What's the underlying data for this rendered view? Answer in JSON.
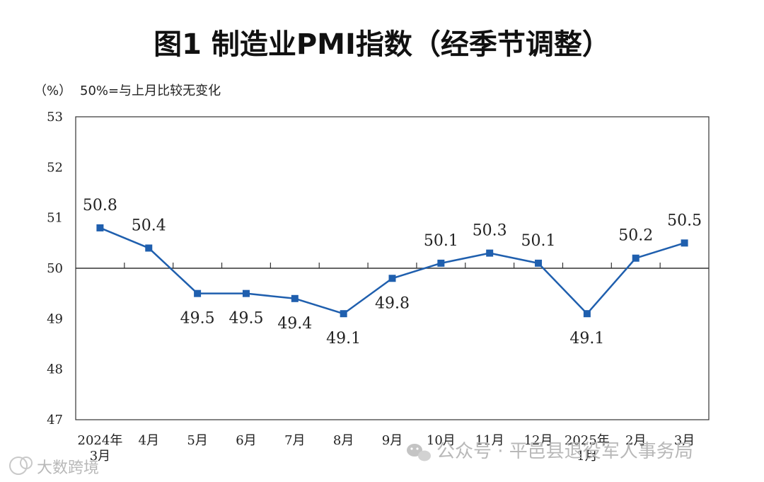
{
  "chart_data": {
    "type": "line",
    "title": "图1  制造业PMI指数（经季节调整）",
    "unit_label": "（%）",
    "note": "50%=与上月比较无变化",
    "categories": [
      [
        "2024年",
        "3月"
      ],
      [
        "4月"
      ],
      [
        "5月"
      ],
      [
        "6月"
      ],
      [
        "7月"
      ],
      [
        "8月"
      ],
      [
        "9月"
      ],
      [
        "10月"
      ],
      [
        "11月"
      ],
      [
        "12月"
      ],
      [
        "2025年",
        "1月"
      ],
      [
        "2月"
      ],
      [
        "3月"
      ]
    ],
    "series": [
      {
        "values": [
          50.8,
          50.4,
          49.5,
          49.5,
          49.4,
          49.1,
          49.8,
          50.1,
          50.3,
          50.1,
          49.1,
          50.2,
          50.5
        ]
      }
    ],
    "ylim": [
      47,
      53
    ],
    "yticks": [
      47,
      48,
      49,
      50,
      51,
      52,
      53
    ],
    "reference_line": 50,
    "label_positions": [
      "above",
      "above",
      "below",
      "below",
      "below",
      "below",
      "below",
      "above",
      "above",
      "above",
      "below",
      "above",
      "above"
    ],
    "grid": false,
    "line_color": "#1f5fae",
    "marker": "square"
  },
  "watermark": {
    "account": "公众号 · 平邑县退役军人事务局",
    "brand": "大数跨境"
  }
}
